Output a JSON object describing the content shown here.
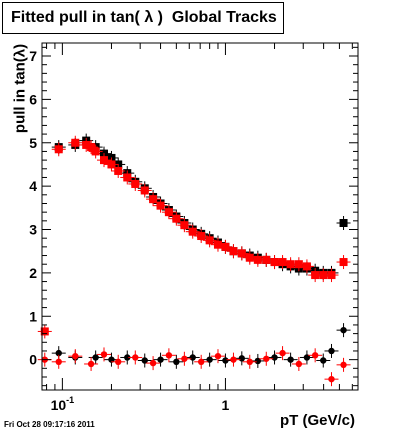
{
  "title": "Fitted pull in tan( λ )  Global Tracks",
  "timestamp": "Fri Oct 28 09:17:16 2011",
  "chart_data": {
    "type": "scatter",
    "title": "Fitted pull in tan( λ )  Global Tracks",
    "xlabel": "pT (GeV/c)",
    "ylabel": "pull in tan(λ)",
    "xscale": "log",
    "xlim": [
      0.075,
      6.5
    ],
    "ylim": [
      -0.7,
      7.3
    ],
    "yticks": [
      0,
      1,
      2,
      3,
      4,
      5,
      6,
      7
    ],
    "xtick_labels": [
      {
        "value": 0.1,
        "label": "10",
        "sup": "-1"
      },
      {
        "value": 1,
        "label": "1"
      }
    ],
    "grid": false,
    "legend": "none",
    "colors": {
      "black_series": "#000000",
      "red_series": "#ff0000"
    },
    "series": [
      {
        "marker": "square",
        "color": "#000000",
        "x": [
          0.095,
          0.12,
          0.14,
          0.16,
          0.18,
          0.2,
          0.22,
          0.25,
          0.28,
          0.32,
          0.36,
          0.4,
          0.45,
          0.5,
          0.56,
          0.63,
          0.71,
          0.8,
          0.9,
          1.0,
          1.12,
          1.26,
          1.41,
          1.58,
          1.78,
          2.0,
          2.24,
          2.51,
          2.82,
          3.16,
          3.55,
          3.98,
          4.47,
          5.3
        ],
        "y": [
          4.9,
          4.95,
          5.05,
          4.9,
          4.75,
          4.65,
          4.5,
          4.3,
          4.1,
          3.95,
          3.75,
          3.6,
          3.45,
          3.3,
          3.15,
          3.0,
          2.9,
          2.8,
          2.7,
          2.6,
          2.5,
          2.45,
          2.4,
          2.35,
          2.3,
          2.25,
          2.2,
          2.15,
          2.1,
          2.1,
          2.05,
          2.0,
          2.0,
          3.15
        ]
      },
      {
        "marker": "square",
        "color": "#ff0000",
        "x": [
          0.078,
          0.095,
          0.12,
          0.14,
          0.15,
          0.16,
          0.18,
          0.2,
          0.22,
          0.25,
          0.28,
          0.32,
          0.36,
          0.4,
          0.45,
          0.5,
          0.56,
          0.63,
          0.71,
          0.8,
          0.9,
          1.0,
          1.12,
          1.26,
          1.41,
          1.58,
          1.78,
          2.0,
          2.24,
          2.51,
          2.82,
          3.16,
          3.55,
          3.98,
          4.47,
          5.3
        ],
        "y": [
          0.65,
          4.85,
          5.0,
          4.95,
          4.9,
          4.8,
          4.6,
          4.5,
          4.35,
          4.2,
          4.05,
          3.9,
          3.7,
          3.55,
          3.4,
          3.25,
          3.1,
          2.95,
          2.85,
          2.75,
          2.65,
          2.6,
          2.5,
          2.45,
          2.35,
          2.3,
          2.3,
          2.25,
          2.25,
          2.2,
          2.2,
          2.15,
          1.95,
          1.95,
          1.95,
          2.25
        ]
      },
      {
        "marker": "circle",
        "color": "#000000",
        "x": [
          0.095,
          0.12,
          0.16,
          0.2,
          0.25,
          0.32,
          0.4,
          0.5,
          0.63,
          0.8,
          1.0,
          1.26,
          1.58,
          2.0,
          2.51,
          3.16,
          3.98,
          4.47,
          5.3
        ],
        "y": [
          0.15,
          0.05,
          0.05,
          0.0,
          0.05,
          -0.02,
          0.0,
          -0.05,
          0.05,
          0.0,
          -0.02,
          0.03,
          -0.03,
          0.05,
          0.0,
          0.05,
          -0.02,
          0.2,
          0.68
        ]
      },
      {
        "marker": "circle",
        "color": "#ff0000",
        "x": [
          0.078,
          0.095,
          0.12,
          0.15,
          0.18,
          0.22,
          0.28,
          0.36,
          0.45,
          0.56,
          0.71,
          0.9,
          1.12,
          1.41,
          1.78,
          2.24,
          2.82,
          3.55,
          4.47,
          5.3
        ],
        "y": [
          0.0,
          -0.05,
          0.08,
          -0.1,
          0.12,
          -0.05,
          0.05,
          -0.08,
          0.1,
          0.02,
          -0.05,
          0.08,
          0.0,
          -0.05,
          0.02,
          0.15,
          -0.1,
          0.1,
          -0.45,
          -0.12
        ]
      }
    ]
  }
}
